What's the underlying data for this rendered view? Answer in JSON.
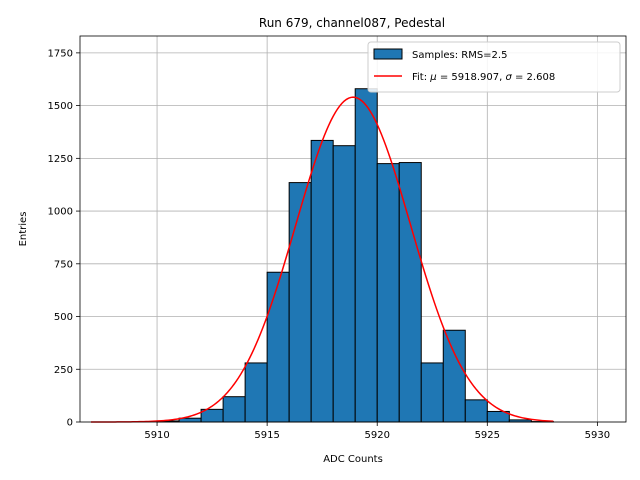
{
  "chart_data": {
    "type": "bar",
    "title": "Run 679, channel087, Pedestal",
    "xlabel": "ADC Counts",
    "ylabel": "Entries",
    "xlim": [
      5906.5,
      5931.3
    ],
    "ylim": [
      0,
      1830
    ],
    "xticks": [
      5910,
      5915,
      5920,
      5925,
      5930
    ],
    "yticks": [
      0,
      250,
      500,
      750,
      1000,
      1250,
      1500,
      1750
    ],
    "grid": true,
    "legend_position": "top-right",
    "bar_color": "#1f77b4",
    "fit_color": "#ff0000",
    "bins": [
      {
        "left": 5910,
        "right": 5911,
        "count": 5
      },
      {
        "left": 5911,
        "right": 5912,
        "count": 18
      },
      {
        "left": 5912,
        "right": 5913,
        "count": 60
      },
      {
        "left": 5913,
        "right": 5914,
        "count": 120
      },
      {
        "left": 5914,
        "right": 5915,
        "count": 280
      },
      {
        "left": 5915,
        "right": 5916,
        "count": 710
      },
      {
        "left": 5916,
        "right": 5917,
        "count": 1135
      },
      {
        "left": 5917,
        "right": 5918,
        "count": 1335
      },
      {
        "left": 5918,
        "right": 5919,
        "count": 1310
      },
      {
        "left": 5919,
        "right": 5920,
        "count": 1580
      },
      {
        "left": 5920,
        "right": 5921,
        "count": 1225
      },
      {
        "left": 5921,
        "right": 5922,
        "count": 1230
      },
      {
        "left": 5922,
        "right": 5923,
        "count": 280
      },
      {
        "left": 5923,
        "right": 5924,
        "count": 435
      },
      {
        "left": 5924,
        "right": 5925,
        "count": 105
      },
      {
        "left": 5925,
        "right": 5926,
        "count": 50
      },
      {
        "left": 5926,
        "right": 5927,
        "count": 10
      },
      {
        "left": 5927,
        "right": 5928,
        "count": 2
      }
    ],
    "fit": {
      "mu": 5918.907,
      "sigma": 2.608,
      "amplitude": 1540,
      "x_range": [
        5907,
        5928
      ]
    },
    "legend": {
      "samples_label": "Samples: RMS=2.5",
      "fit_prefix": "Fit: ",
      "mu_symbol": "μ",
      "mu_text": " = 5918.907, ",
      "sigma_symbol": "σ",
      "sigma_text": " = 2.608"
    }
  }
}
